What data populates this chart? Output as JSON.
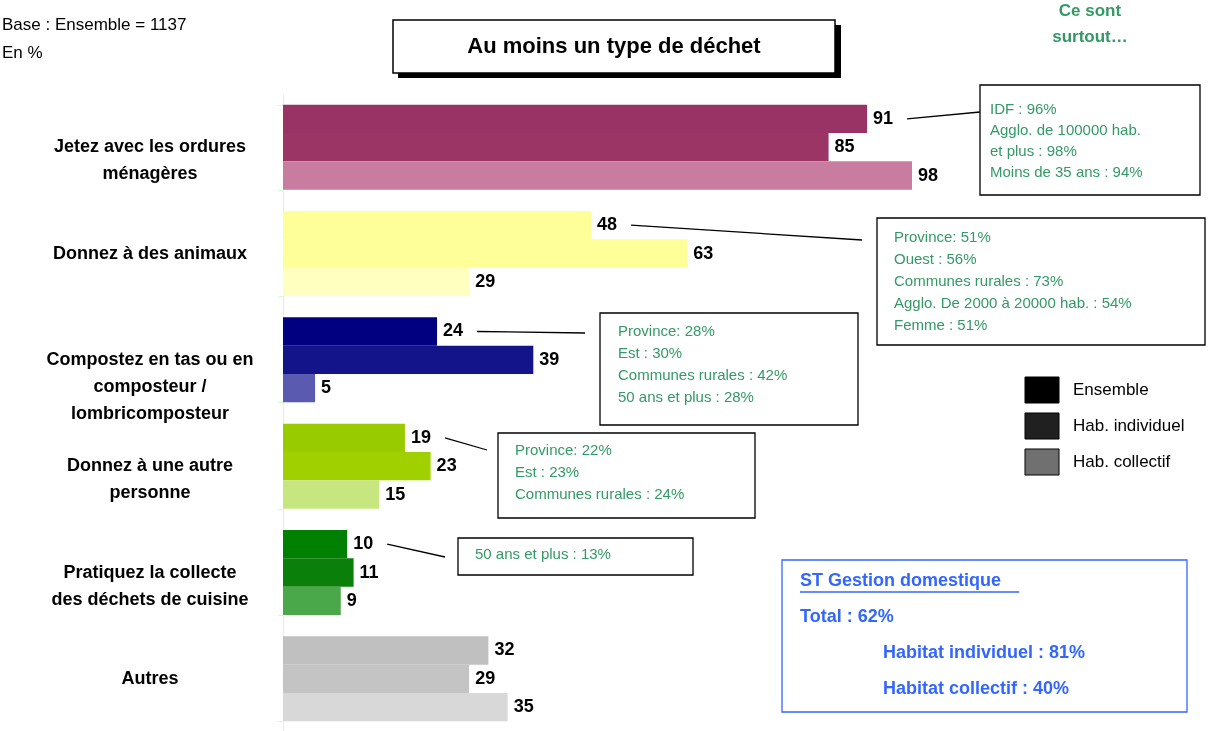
{
  "chart_data": {
    "type": "bar",
    "orientation": "horizontal",
    "title": "Au moins un type de déchet",
    "categories": [
      "Jetez avec les ordures ménagères",
      "Donnez à des animaux",
      "Compostez en tas ou en composteur / lombricomposteur",
      "Donnez à une autre personne",
      "Pratiquez la collecte des déchets de cuisine",
      "Autres"
    ],
    "series": [
      {
        "name": "Ensemble",
        "color": "#000000",
        "colors": [
          "#993366",
          "#ffff99",
          "#000080",
          "#99cc00",
          "#008000",
          "#c0c0c0"
        ],
        "values": [
          91,
          48,
          24,
          19,
          10,
          32
        ]
      },
      {
        "name": "Hab. individuel",
        "color": "#202020",
        "colors": [
          "#9a3565",
          "#ffff99",
          "#14148a",
          "#a0d000",
          "#0a800a",
          "#c4c4c4"
        ],
        "values": [
          85,
          63,
          39,
          23,
          11,
          29
        ]
      },
      {
        "name": "Hab. collectif",
        "color": "#707070",
        "colors": [
          "#c77ca0",
          "#ffffc0",
          "#5a5ab0",
          "#c8e680",
          "#4aa84a",
          "#d8d8d8"
        ],
        "values": [
          98,
          29,
          5,
          15,
          9,
          35
        ]
      }
    ],
    "data_labels": true,
    "legend": "right",
    "annotations": [
      "Base : Ensemble = 1137",
      "En %",
      "Ce sont\nsurtout…",
      "IDF : 96%\nAgglo. de 100000 hab.\net plus : 98%\nMoins de 35 ans : 94%",
      "Province: 51%\nOuest : 56%\nCommunes rurales : 73%\nAgglo. De 2000 à 20000 hab. : 54%\nFemme : 51%",
      "Province: 28%\nEst : 30%\nCommunes rurales : 42%\n50 ans et plus : 28%",
      "Province: 22%\nEst : 23%\nCommunes rurales : 24%",
      "50 ans et plus : 13%",
      "ST Gestion domestique\nTotal : 62%\nHabitat individuel : 81%\nHabitat collectif : 40%"
    ]
  }
}
